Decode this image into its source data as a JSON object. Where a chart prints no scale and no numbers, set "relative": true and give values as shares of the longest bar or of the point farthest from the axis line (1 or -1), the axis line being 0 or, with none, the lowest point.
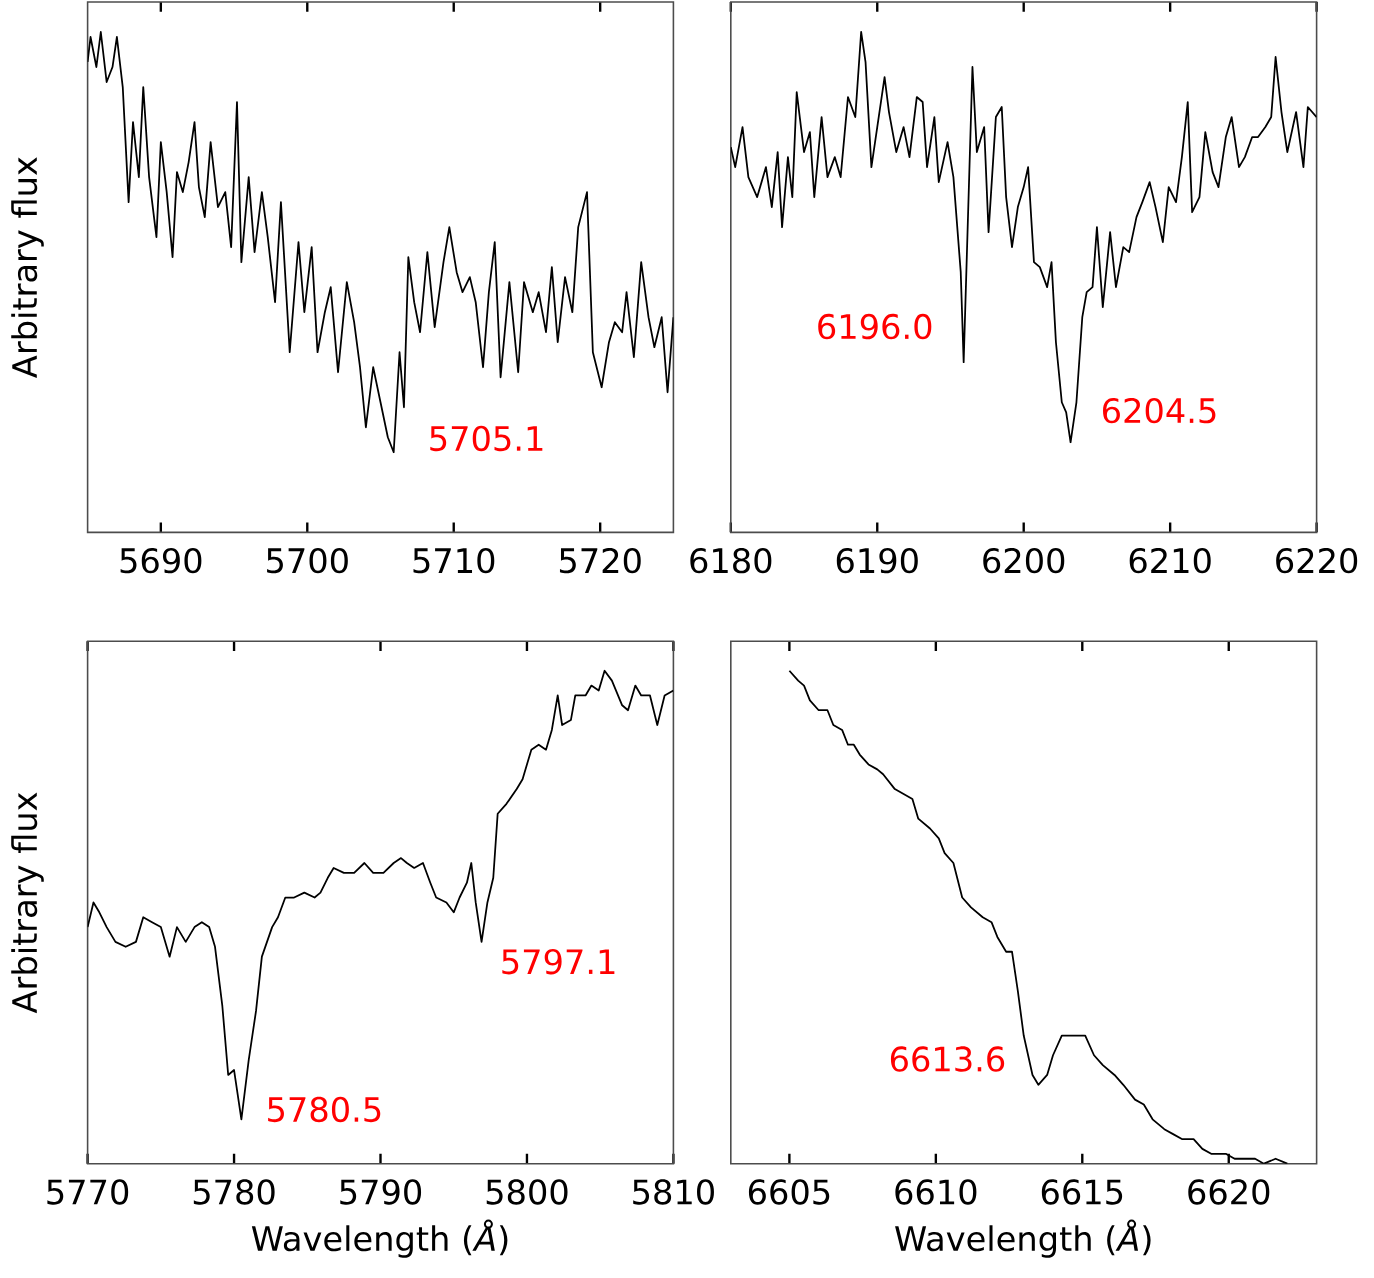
{
  "chart_data": [
    {
      "type": "line",
      "relative": true,
      "ylabel": "Arbitrary flux",
      "xlim": [
        5685,
        5725
      ],
      "xticks": [
        5690,
        5700,
        5710,
        5720
      ],
      "tick_labels": "x",
      "series": [
        {
          "color": "#000000",
          "x": [
            5685.0,
            5685.2,
            5685.6,
            5685.9,
            5686.3,
            5686.7,
            5687.0,
            5687.4,
            5687.8,
            5688.1,
            5688.5,
            5688.8,
            5689.2,
            5689.7,
            5690.0,
            5690.4,
            5690.8,
            5691.1,
            5691.5,
            5691.9,
            5692.3,
            5692.6,
            5693.0,
            5693.4,
            5693.9,
            5694.4,
            5694.8,
            5695.2,
            5695.5,
            5696.0,
            5696.4,
            5696.9,
            5697.3,
            5697.8,
            5698.2,
            5698.8,
            5699.4,
            5699.8,
            5700.3,
            5700.7,
            5701.2,
            5701.6,
            5702.1,
            5702.7,
            5703.2,
            5703.6,
            5704.0,
            5704.5,
            5705.0,
            5705.5,
            5705.9,
            5706.3,
            5706.6,
            5706.9,
            5707.3,
            5707.7,
            5708.2,
            5708.7,
            5709.3,
            5709.7,
            5710.2,
            5710.6,
            5711.1,
            5711.5,
            5712.0,
            5712.4,
            5712.8,
            5713.2,
            5713.8,
            5714.4,
            5714.8,
            5715.4,
            5715.8,
            5716.3,
            5716.7,
            5717.1,
            5717.6,
            5718.1,
            5718.5,
            5719.1,
            5719.5,
            5720.1,
            5720.6,
            5721.0,
            5721.5,
            5721.8,
            5722.3,
            5722.8,
            5723.3,
            5723.7,
            5724.2,
            5724.6,
            5725.0
          ],
          "values": [
            0.94,
            0.99,
            0.93,
            1.0,
            0.9,
            0.93,
            0.99,
            0.89,
            0.66,
            0.82,
            0.71,
            0.89,
            0.71,
            0.59,
            0.78,
            0.68,
            0.55,
            0.72,
            0.68,
            0.74,
            0.82,
            0.69,
            0.63,
            0.78,
            0.65,
            0.68,
            0.57,
            0.86,
            0.54,
            0.71,
            0.56,
            0.68,
            0.59,
            0.46,
            0.66,
            0.36,
            0.58,
            0.44,
            0.57,
            0.36,
            0.44,
            0.49,
            0.32,
            0.5,
            0.42,
            0.33,
            0.21,
            0.33,
            0.26,
            0.19,
            0.16,
            0.36,
            0.25,
            0.55,
            0.46,
            0.4,
            0.56,
            0.41,
            0.54,
            0.61,
            0.52,
            0.48,
            0.51,
            0.46,
            0.33,
            0.48,
            0.58,
            0.31,
            0.5,
            0.32,
            0.5,
            0.44,
            0.48,
            0.4,
            0.53,
            0.38,
            0.51,
            0.44,
            0.61,
            0.68,
            0.36,
            0.29,
            0.38,
            0.42,
            0.4,
            0.48,
            0.35,
            0.54,
            0.43,
            0.37,
            0.43,
            0.28,
            0.43
          ]
        }
      ],
      "annotations": [
        {
          "text": "5705.1",
          "x": 5705.9,
          "y": 0.16
        }
      ]
    },
    {
      "type": "line",
      "relative": true,
      "xlim": [
        6180,
        6220
      ],
      "xticks": [
        6180,
        6190,
        6200,
        6210,
        6220
      ],
      "tick_labels": "x",
      "series": [
        {
          "color": "#000000",
          "x": [
            6180.0,
            6180.3,
            6180.8,
            6181.2,
            6181.8,
            6182.4,
            6182.8,
            6183.2,
            6183.5,
            6183.9,
            6184.2,
            6184.5,
            6185.0,
            6185.4,
            6185.7,
            6186.2,
            6186.6,
            6187.1,
            6187.5,
            6188.0,
            6188.5,
            6188.9,
            6189.2,
            6189.6,
            6190.0,
            6190.5,
            6190.8,
            6191.3,
            6191.8,
            6192.2,
            6192.7,
            6193.1,
            6193.4,
            6193.9,
            6194.2,
            6194.8,
            6195.2,
            6195.7,
            6195.9,
            6196.5,
            6196.8,
            6197.3,
            6197.6,
            6198.1,
            6198.5,
            6198.8,
            6199.2,
            6199.6,
            6200.0,
            6200.3,
            6200.7,
            6201.1,
            6201.6,
            6201.9,
            6202.2,
            6202.6,
            6202.9,
            6203.2,
            6203.6,
            6204.0,
            6204.3,
            6204.7,
            6205.0,
            6205.4,
            6205.9,
            6206.3,
            6206.8,
            6207.2,
            6207.7,
            6208.1,
            6208.6,
            6209.0,
            6209.5,
            6209.9,
            6210.4,
            6210.8,
            6211.2,
            6211.5,
            6212.0,
            6212.4,
            6212.9,
            6213.3,
            6213.8,
            6214.2,
            6214.7,
            6215.1,
            6215.6,
            6216.0,
            6216.5,
            6216.9,
            6217.2,
            6217.6,
            6218.0,
            6218.3,
            6218.6,
            6219.1,
            6219.4,
            6220.0
          ],
          "values": [
            0.77,
            0.73,
            0.81,
            0.71,
            0.67,
            0.73,
            0.65,
            0.76,
            0.61,
            0.75,
            0.67,
            0.88,
            0.76,
            0.8,
            0.67,
            0.83,
            0.71,
            0.75,
            0.71,
            0.87,
            0.83,
            1.0,
            0.94,
            0.73,
            0.81,
            0.91,
            0.84,
            0.76,
            0.81,
            0.75,
            0.87,
            0.86,
            0.73,
            0.83,
            0.7,
            0.78,
            0.71,
            0.52,
            0.34,
            0.93,
            0.76,
            0.81,
            0.6,
            0.83,
            0.85,
            0.67,
            0.57,
            0.65,
            0.69,
            0.73,
            0.54,
            0.53,
            0.49,
            0.54,
            0.38,
            0.26,
            0.24,
            0.18,
            0.26,
            0.43,
            0.48,
            0.49,
            0.61,
            0.45,
            0.6,
            0.49,
            0.57,
            0.56,
            0.63,
            0.66,
            0.7,
            0.65,
            0.58,
            0.69,
            0.66,
            0.75,
            0.86,
            0.64,
            0.67,
            0.8,
            0.72,
            0.69,
            0.79,
            0.83,
            0.73,
            0.75,
            0.79,
            0.79,
            0.81,
            0.83,
            0.95,
            0.84,
            0.76,
            0.8,
            0.84,
            0.73,
            0.85,
            0.83
          ]
        }
      ],
      "annotations": [
        {
          "text": "6196.0",
          "x": 6195.9,
          "y": 0.34
        },
        {
          "text": "6204.5",
          "x": 6203.2,
          "y": 0.18
        }
      ]
    },
    {
      "type": "line",
      "relative": true,
      "xlabel": "Wavelength (*Å*)",
      "ylabel": "Arbitrary flux",
      "xlim": [
        5770,
        5810
      ],
      "xticks": [
        5770,
        5780,
        5790,
        5800,
        5810
      ],
      "tick_labels": "x",
      "series": [
        {
          "color": "#000000",
          "x": [
            5770.0,
            5770.4,
            5770.8,
            5771.3,
            5771.9,
            5772.6,
            5773.3,
            5773.8,
            5774.4,
            5775.0,
            5775.6,
            5776.1,
            5776.7,
            5777.3,
            5777.8,
            5778.3,
            5778.7,
            5779.2,
            5779.6,
            5780.0,
            5780.5,
            5781.0,
            5781.5,
            5781.9,
            5782.6,
            5783.0,
            5783.5,
            5784.1,
            5784.8,
            5785.5,
            5785.9,
            5786.4,
            5786.8,
            5787.5,
            5788.2,
            5788.9,
            5789.5,
            5790.2,
            5790.9,
            5791.4,
            5791.8,
            5792.3,
            5792.9,
            5793.4,
            5793.8,
            5794.5,
            5795.0,
            5795.4,
            5795.9,
            5796.2,
            5796.5,
            5796.9,
            5797.3,
            5797.7,
            5798.0,
            5798.6,
            5799.3,
            5799.7,
            5800.3,
            5800.8,
            5801.3,
            5801.7,
            5802.1,
            5802.4,
            5803.0,
            5803.3,
            5804.0,
            5804.4,
            5804.9,
            5805.3,
            5805.8,
            5806.5,
            5806.9,
            5807.4,
            5807.8,
            5808.4,
            5808.9,
            5809.4,
            5810.0
          ],
          "values": [
            0.48,
            0.53,
            0.51,
            0.48,
            0.45,
            0.44,
            0.45,
            0.5,
            0.49,
            0.48,
            0.42,
            0.48,
            0.45,
            0.48,
            0.49,
            0.48,
            0.44,
            0.32,
            0.18,
            0.19,
            0.09,
            0.21,
            0.31,
            0.42,
            0.48,
            0.5,
            0.54,
            0.54,
            0.55,
            0.54,
            0.55,
            0.58,
            0.6,
            0.59,
            0.59,
            0.61,
            0.59,
            0.59,
            0.61,
            0.62,
            0.61,
            0.6,
            0.61,
            0.57,
            0.54,
            0.53,
            0.51,
            0.54,
            0.57,
            0.61,
            0.53,
            0.45,
            0.53,
            0.58,
            0.71,
            0.73,
            0.76,
            0.78,
            0.84,
            0.85,
            0.84,
            0.88,
            0.95,
            0.89,
            0.9,
            0.95,
            0.95,
            0.97,
            0.96,
            1.0,
            0.98,
            0.93,
            0.92,
            0.97,
            0.95,
            0.95,
            0.89,
            0.95,
            0.96
          ]
        }
      ],
      "annotations": [
        {
          "text": "5797.1",
          "x": 5796.9,
          "y": 0.45
        },
        {
          "text": "5780.5",
          "x": 5780.5,
          "y": 0.09
        }
      ]
    },
    {
      "type": "line",
      "relative": true,
      "xlabel": "Wavelength (*Å*)",
      "xlim": [
        6603,
        6623
      ],
      "xticks": [
        6605,
        6610,
        6615,
        6620
      ],
      "tick_labels": "x",
      "series": [
        {
          "color": "#000000",
          "x": [
            6605.0,
            6605.3,
            6605.5,
            6605.7,
            6606.0,
            6606.3,
            6606.5,
            6606.8,
            6607.0,
            6607.2,
            6607.4,
            6607.7,
            6608.0,
            6608.2,
            6608.6,
            6608.9,
            6609.2,
            6609.4,
            6609.8,
            6610.1,
            6610.3,
            6610.6,
            6610.9,
            6611.2,
            6611.6,
            6611.9,
            6612.1,
            6612.4,
            6612.6,
            6612.8,
            6613.0,
            6613.3,
            6613.5,
            6613.8,
            6614.0,
            6614.3,
            6614.6,
            6615.1,
            6615.4,
            6615.7,
            6616.1,
            6616.4,
            6616.8,
            6617.1,
            6617.4,
            6617.8,
            6618.1,
            6618.4,
            6618.8,
            6619.1,
            6619.4,
            6619.9,
            6620.2,
            6620.6,
            6620.9,
            6621.2,
            6621.6,
            6622.0
          ],
          "values": [
            1.0,
            0.98,
            0.97,
            0.94,
            0.92,
            0.92,
            0.89,
            0.88,
            0.85,
            0.85,
            0.83,
            0.81,
            0.8,
            0.79,
            0.76,
            0.75,
            0.74,
            0.7,
            0.68,
            0.66,
            0.63,
            0.61,
            0.54,
            0.52,
            0.5,
            0.49,
            0.46,
            0.43,
            0.43,
            0.35,
            0.26,
            0.18,
            0.16,
            0.18,
            0.22,
            0.26,
            0.26,
            0.26,
            0.22,
            0.2,
            0.18,
            0.16,
            0.13,
            0.12,
            0.09,
            0.07,
            0.06,
            0.05,
            0.05,
            0.03,
            0.02,
            0.02,
            0.01,
            0.01,
            0.01,
            0.0,
            0.01,
            0.0
          ]
        }
      ],
      "annotations": [
        {
          "text": "6613.6",
          "x": 6613.5,
          "y": 0.16
        }
      ]
    }
  ]
}
